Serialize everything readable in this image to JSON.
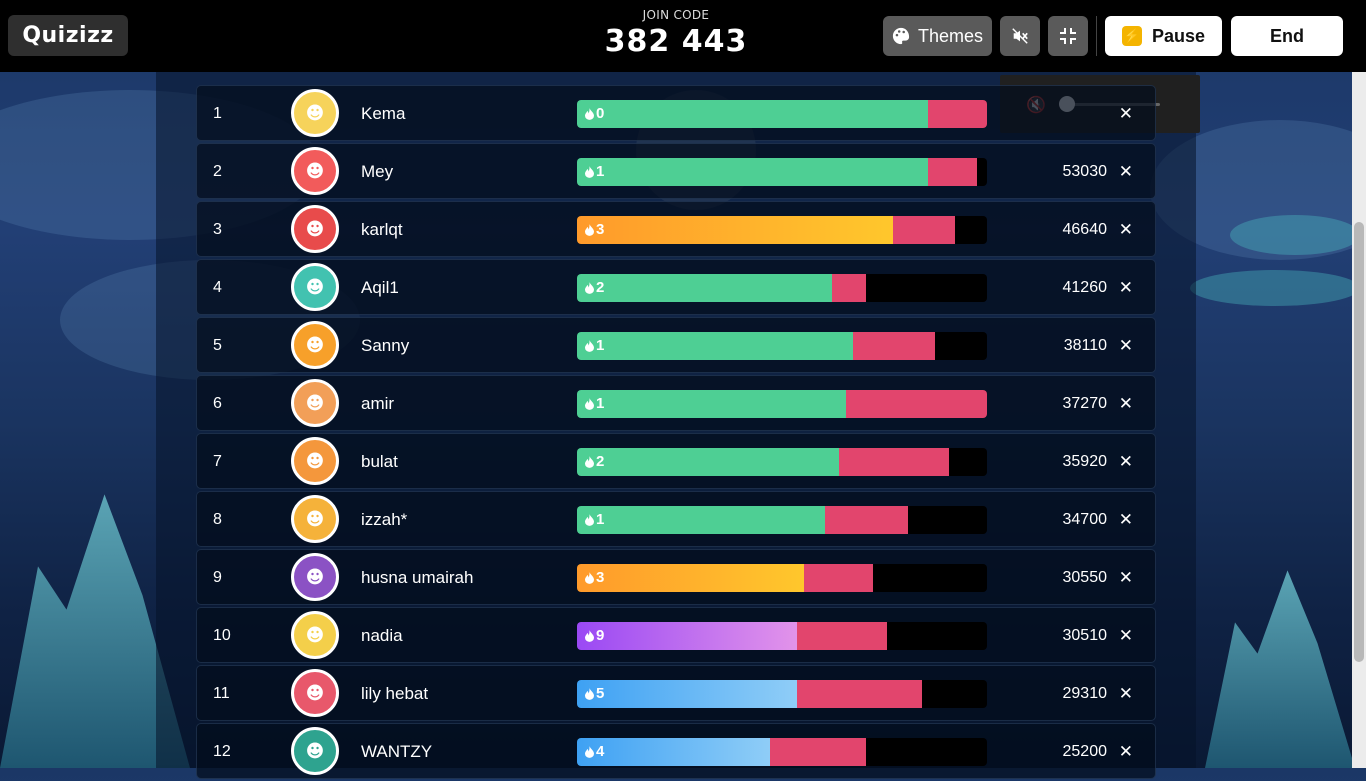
{
  "brand": "Quizizz",
  "join": {
    "label": "JOIN CODE",
    "code": "382 443"
  },
  "toolbar": {
    "themes": "Themes",
    "pause": "Pause",
    "end": "End"
  },
  "colors": {
    "correct": "#4ecf94",
    "incorrect": "#e2456d",
    "streak_orange": "#ffa62b",
    "streak_purple": "#a14cf2",
    "streak_blue": "#4aa8f5"
  },
  "players": [
    {
      "rank": "1",
      "name": "Kema",
      "streak": "0",
      "score": "",
      "correct_pct": 0.857,
      "incorrect_pct": 0.152,
      "streak_style": "green"
    },
    {
      "rank": "2",
      "name": "Mey",
      "streak": "1",
      "score": "53030",
      "correct_pct": 0.857,
      "incorrect_pct": 0.12,
      "streak_style": "green"
    },
    {
      "rank": "3",
      "name": "karlqt",
      "streak": "3",
      "score": "46640",
      "correct_pct": 0.771,
      "incorrect_pct": 0.151,
      "streak_style": "orange"
    },
    {
      "rank": "4",
      "name": "Aqil1",
      "streak": "2",
      "score": "41260",
      "correct_pct": 0.622,
      "incorrect_pct": 0.083,
      "streak_style": "green"
    },
    {
      "rank": "5",
      "name": "Sanny",
      "streak": "1",
      "score": "38110",
      "correct_pct": 0.673,
      "incorrect_pct": 0.2,
      "streak_style": "green"
    },
    {
      "rank": "6",
      "name": "amir",
      "streak": "1",
      "score": "37270",
      "correct_pct": 0.656,
      "incorrect_pct": 0.354,
      "streak_style": "green"
    },
    {
      "rank": "7",
      "name": "bulat",
      "streak": "2",
      "score": "35920",
      "correct_pct": 0.639,
      "incorrect_pct": 0.268,
      "streak_style": "green"
    },
    {
      "rank": "8",
      "name": "izzah*",
      "streak": "1",
      "score": "34700",
      "correct_pct": 0.605,
      "incorrect_pct": 0.202,
      "streak_style": "green"
    },
    {
      "rank": "9",
      "name": "husna umairah",
      "streak": "3",
      "score": "30550",
      "correct_pct": 0.554,
      "incorrect_pct": 0.168,
      "streak_style": "orange"
    },
    {
      "rank": "10",
      "name": "nadia",
      "streak": "9",
      "score": "30510",
      "correct_pct": 0.537,
      "incorrect_pct": 0.22,
      "streak_style": "purple"
    },
    {
      "rank": "11",
      "name": "lily hebat",
      "streak": "5",
      "score": "29310",
      "correct_pct": 0.537,
      "incorrect_pct": 0.305,
      "streak_style": "blue"
    },
    {
      "rank": "12",
      "name": "WANTZY",
      "streak": "4",
      "score": "25200",
      "correct_pct": 0.47,
      "incorrect_pct": 0.234,
      "streak_style": "blue"
    }
  ],
  "icons": {
    "palette": "palette-icon",
    "mute": "mute-icon",
    "fullscreen": "exit-fullscreen-icon",
    "pause": "lightning-icon",
    "remove": "close-icon"
  }
}
